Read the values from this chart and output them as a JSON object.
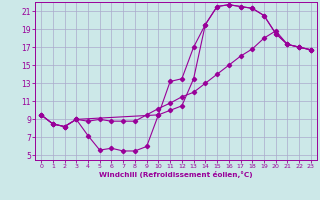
{
  "xlabel": "Windchill (Refroidissement éolien,°C)",
  "bg_color": "#cce8e8",
  "grid_color": "#aaaacc",
  "line_color": "#990099",
  "xlim": [
    -0.5,
    23.5
  ],
  "ylim": [
    4.5,
    22.0
  ],
  "xticks": [
    0,
    1,
    2,
    3,
    4,
    5,
    6,
    7,
    8,
    9,
    10,
    11,
    12,
    13,
    14,
    15,
    16,
    17,
    18,
    19,
    20,
    21,
    22,
    23
  ],
  "yticks": [
    5,
    7,
    9,
    11,
    13,
    15,
    17,
    19,
    21
  ],
  "line1_x": [
    0,
    1,
    2,
    3,
    4,
    5,
    6,
    7,
    8,
    9,
    10,
    11,
    12,
    13,
    14,
    15,
    16,
    17,
    18,
    19,
    20,
    21,
    22,
    23
  ],
  "line1_y": [
    9.5,
    8.5,
    8.2,
    9.0,
    7.2,
    5.6,
    5.8,
    5.5,
    5.5,
    6.0,
    9.5,
    13.2,
    13.5,
    17.0,
    19.5,
    21.5,
    21.7,
    21.5,
    21.3,
    20.5,
    18.5,
    17.3,
    17.0,
    16.7
  ],
  "line2_x": [
    0,
    1,
    2,
    3,
    4,
    5,
    6,
    7,
    8,
    9,
    10,
    11,
    12,
    13,
    14,
    15,
    16,
    17,
    18,
    19,
    20,
    21,
    22,
    23
  ],
  "line2_y": [
    9.5,
    8.5,
    8.2,
    9.0,
    8.8,
    9.0,
    8.8,
    8.8,
    8.8,
    9.5,
    10.2,
    10.8,
    11.5,
    12.0,
    13.0,
    14.0,
    15.0,
    16.0,
    16.8,
    18.0,
    18.8,
    17.3,
    17.0,
    16.7
  ],
  "line3_x": [
    0,
    1,
    2,
    3,
    10,
    11,
    12,
    13,
    14,
    15,
    16,
    17,
    18,
    19,
    20,
    21,
    22,
    23
  ],
  "line3_y": [
    9.5,
    8.5,
    8.2,
    9.0,
    9.5,
    10.0,
    10.5,
    13.5,
    19.5,
    21.5,
    21.7,
    21.5,
    21.3,
    20.5,
    18.5,
    17.3,
    17.0,
    16.7
  ]
}
